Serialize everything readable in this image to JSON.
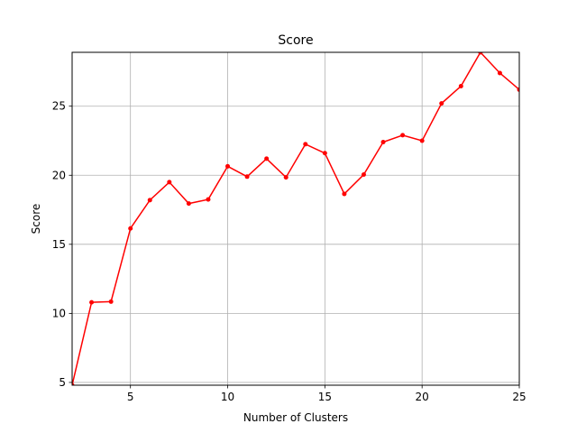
{
  "chart_data": {
    "type": "line",
    "title": "Score",
    "xlabel": "Number of Clusters",
    "ylabel": "Score",
    "xlim": [
      2,
      25
    ],
    "ylim": [
      4.8,
      28.9
    ],
    "grid": true,
    "x_ticks": [
      5,
      10,
      15,
      20,
      25
    ],
    "y_ticks": [
      5,
      10,
      15,
      20,
      25
    ],
    "series": [
      {
        "color": "#ff0000",
        "marker": "circle",
        "x": [
          2,
          3,
          4,
          5,
          6,
          7,
          8,
          9,
          10,
          11,
          12,
          13,
          14,
          15,
          16,
          17,
          18,
          19,
          20,
          21,
          22,
          23,
          24,
          25
        ],
        "y": [
          4.8,
          10.8,
          10.85,
          16.15,
          18.2,
          19.5,
          17.95,
          18.25,
          20.65,
          19.9,
          21.2,
          19.85,
          22.25,
          21.6,
          18.65,
          20.05,
          22.4,
          22.9,
          22.5,
          25.2,
          26.45,
          28.9,
          27.4,
          26.2
        ]
      }
    ]
  }
}
